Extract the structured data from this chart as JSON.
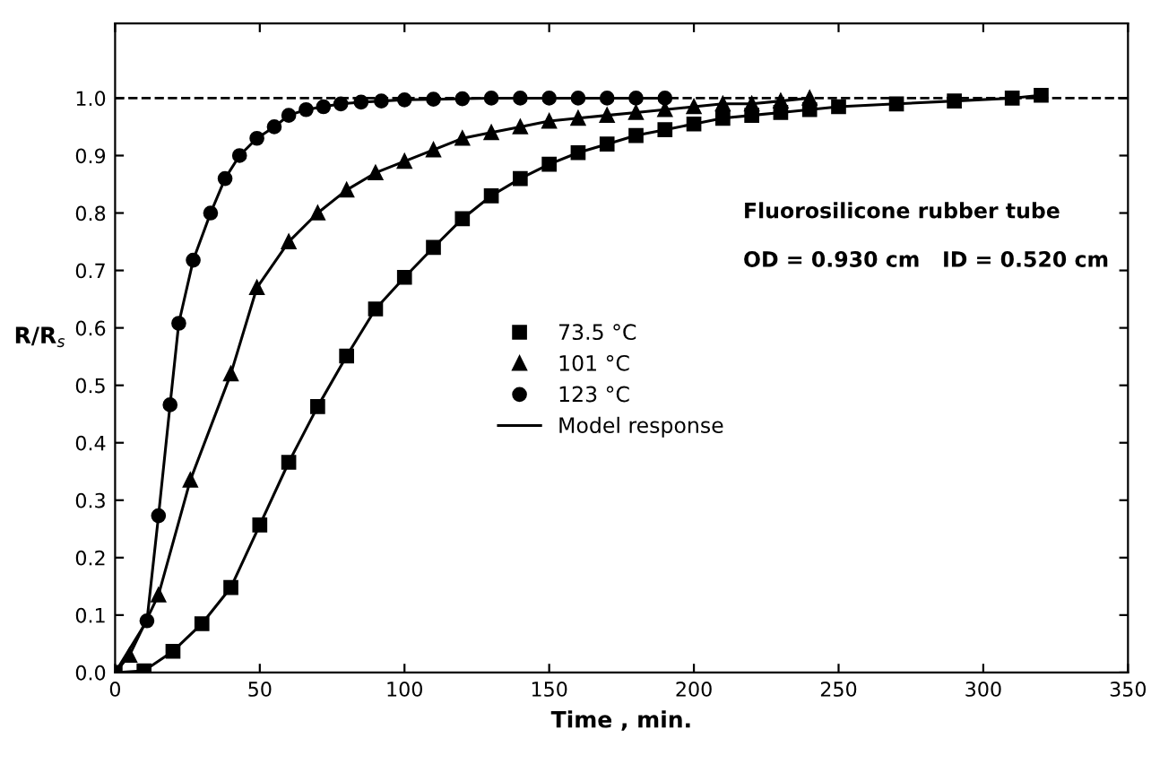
{
  "chart_data": {
    "type": "scatter",
    "xlabel": "Time , min.",
    "ylabel": "R/R$_{s}$",
    "xlim": [
      0,
      350
    ],
    "ylim": [
      0,
      1.13
    ],
    "xticks": [
      0,
      50,
      100,
      150,
      200,
      250,
      300,
      350
    ],
    "yticks": [
      {
        "value": 0,
        "label": "0.0"
      },
      0.1,
      0.2,
      0.3,
      0.4,
      0.5,
      0.6,
      0.7,
      0.8,
      0.9,
      {
        "value": 1,
        "label": "1.0"
      }
    ],
    "grid": false,
    "legend": "center right",
    "annotations": [
      "Fluorosilicone rubber tube",
      "OD = 0.930 cm   ID = 0.520 cm"
    ],
    "ref_lines": [
      {
        "axis": "y",
        "value": 1.0,
        "line_style": "dashed",
        "color": "#000000"
      }
    ],
    "series": [
      {
        "name": "73.5 °C",
        "marker": "square",
        "color": "#000000",
        "x": [
          0,
          10,
          20,
          30,
          40,
          50,
          60,
          70,
          80,
          90,
          100,
          110,
          120,
          130,
          140,
          150,
          160,
          170,
          180,
          190,
          200,
          210,
          220,
          230,
          240,
          250,
          270,
          290,
          310,
          320
        ],
        "values": [
          0,
          0.003,
          0.037,
          0.085,
          0.148,
          0.257,
          0.366,
          0.463,
          0.551,
          0.633,
          0.688,
          0.74,
          0.79,
          0.83,
          0.86,
          0.885,
          0.905,
          0.92,
          0.935,
          0.945,
          0.955,
          0.965,
          0.97,
          0.975,
          0.98,
          0.985,
          0.99,
          0.995,
          1.0,
          1.005
        ]
      },
      {
        "name": "101 °C",
        "marker": "triangle",
        "color": "#000000",
        "x": [
          5,
          15,
          26,
          40,
          49,
          60,
          70,
          80,
          90,
          100,
          110,
          120,
          130,
          140,
          150,
          160,
          170,
          180,
          190,
          200,
          210,
          220,
          230,
          240
        ],
        "values": [
          0.03,
          0.135,
          0.335,
          0.52,
          0.67,
          0.75,
          0.8,
          0.84,
          0.87,
          0.89,
          0.91,
          0.93,
          0.94,
          0.95,
          0.96,
          0.965,
          0.97,
          0.975,
          0.98,
          0.985,
          0.99,
          0.99,
          0.995,
          1.0
        ]
      },
      {
        "name": "123 °C",
        "marker": "circle",
        "color": "#000000",
        "x": [
          11,
          15,
          19,
          22,
          27,
          33,
          38,
          43,
          49,
          55,
          60,
          66,
          72,
          78,
          85,
          92,
          100,
          110,
          120,
          130,
          140,
          150,
          160,
          170,
          180,
          190
        ],
        "values": [
          0.09,
          0.273,
          0.466,
          0.608,
          0.718,
          0.8,
          0.86,
          0.9,
          0.93,
          0.95,
          0.97,
          0.98,
          0.985,
          0.99,
          0.993,
          0.995,
          0.997,
          0.998,
          0.999,
          1.0,
          1.0,
          1.0,
          1.0,
          1.0,
          1.0,
          1.0
        ]
      },
      {
        "name": "Model response",
        "type": "line",
        "marker": "none",
        "line_style": "solid",
        "color": "#000000",
        "x": [
          0,
          10,
          20,
          30,
          40,
          50,
          60,
          70,
          80,
          90,
          100,
          110,
          120,
          130,
          140,
          150,
          160,
          170,
          180,
          190,
          200,
          210,
          220,
          230,
          240,
          250,
          270,
          290,
          310,
          320
        ],
        "values": [
          0,
          0.003,
          0.037,
          0.085,
          0.148,
          0.257,
          0.366,
          0.463,
          0.551,
          0.633,
          0.688,
          0.74,
          0.79,
          0.83,
          0.86,
          0.885,
          0.905,
          0.92,
          0.935,
          0.945,
          0.955,
          0.965,
          0.97,
          0.975,
          0.98,
          0.985,
          0.99,
          0.995,
          1.0,
          1.005
        ]
      },
      {
        "type": "line",
        "marker": "none",
        "line_style": "solid",
        "color": "#000000",
        "x": [
          0,
          5,
          15,
          26,
          40,
          49,
          60,
          70,
          80,
          90,
          100,
          110,
          120,
          130,
          140,
          150,
          160,
          170,
          180,
          190,
          200,
          210,
          220,
          230,
          240
        ],
        "values": [
          0,
          0.03,
          0.135,
          0.335,
          0.52,
          0.67,
          0.75,
          0.8,
          0.84,
          0.87,
          0.89,
          0.91,
          0.93,
          0.94,
          0.95,
          0.96,
          0.965,
          0.97,
          0.975,
          0.98,
          0.985,
          0.99,
          0.99,
          0.995,
          1.0
        ]
      },
      {
        "type": "line",
        "marker": "none",
        "line_style": "solid",
        "color": "#000000",
        "x": [
          0,
          11,
          15,
          19,
          22,
          27,
          33,
          38,
          43,
          49,
          55,
          60,
          66,
          72,
          78,
          85,
          92,
          100,
          110,
          120,
          130,
          140,
          150,
          160,
          170,
          180,
          190
        ],
        "values": [
          0,
          0.09,
          0.273,
          0.466,
          0.608,
          0.718,
          0.8,
          0.86,
          0.9,
          0.93,
          0.95,
          0.97,
          0.98,
          0.985,
          0.99,
          0.993,
          0.995,
          0.997,
          0.998,
          0.999,
          1.0,
          1.0,
          1.0,
          1.0,
          1.0,
          1.0,
          1.0
        ]
      }
    ]
  }
}
